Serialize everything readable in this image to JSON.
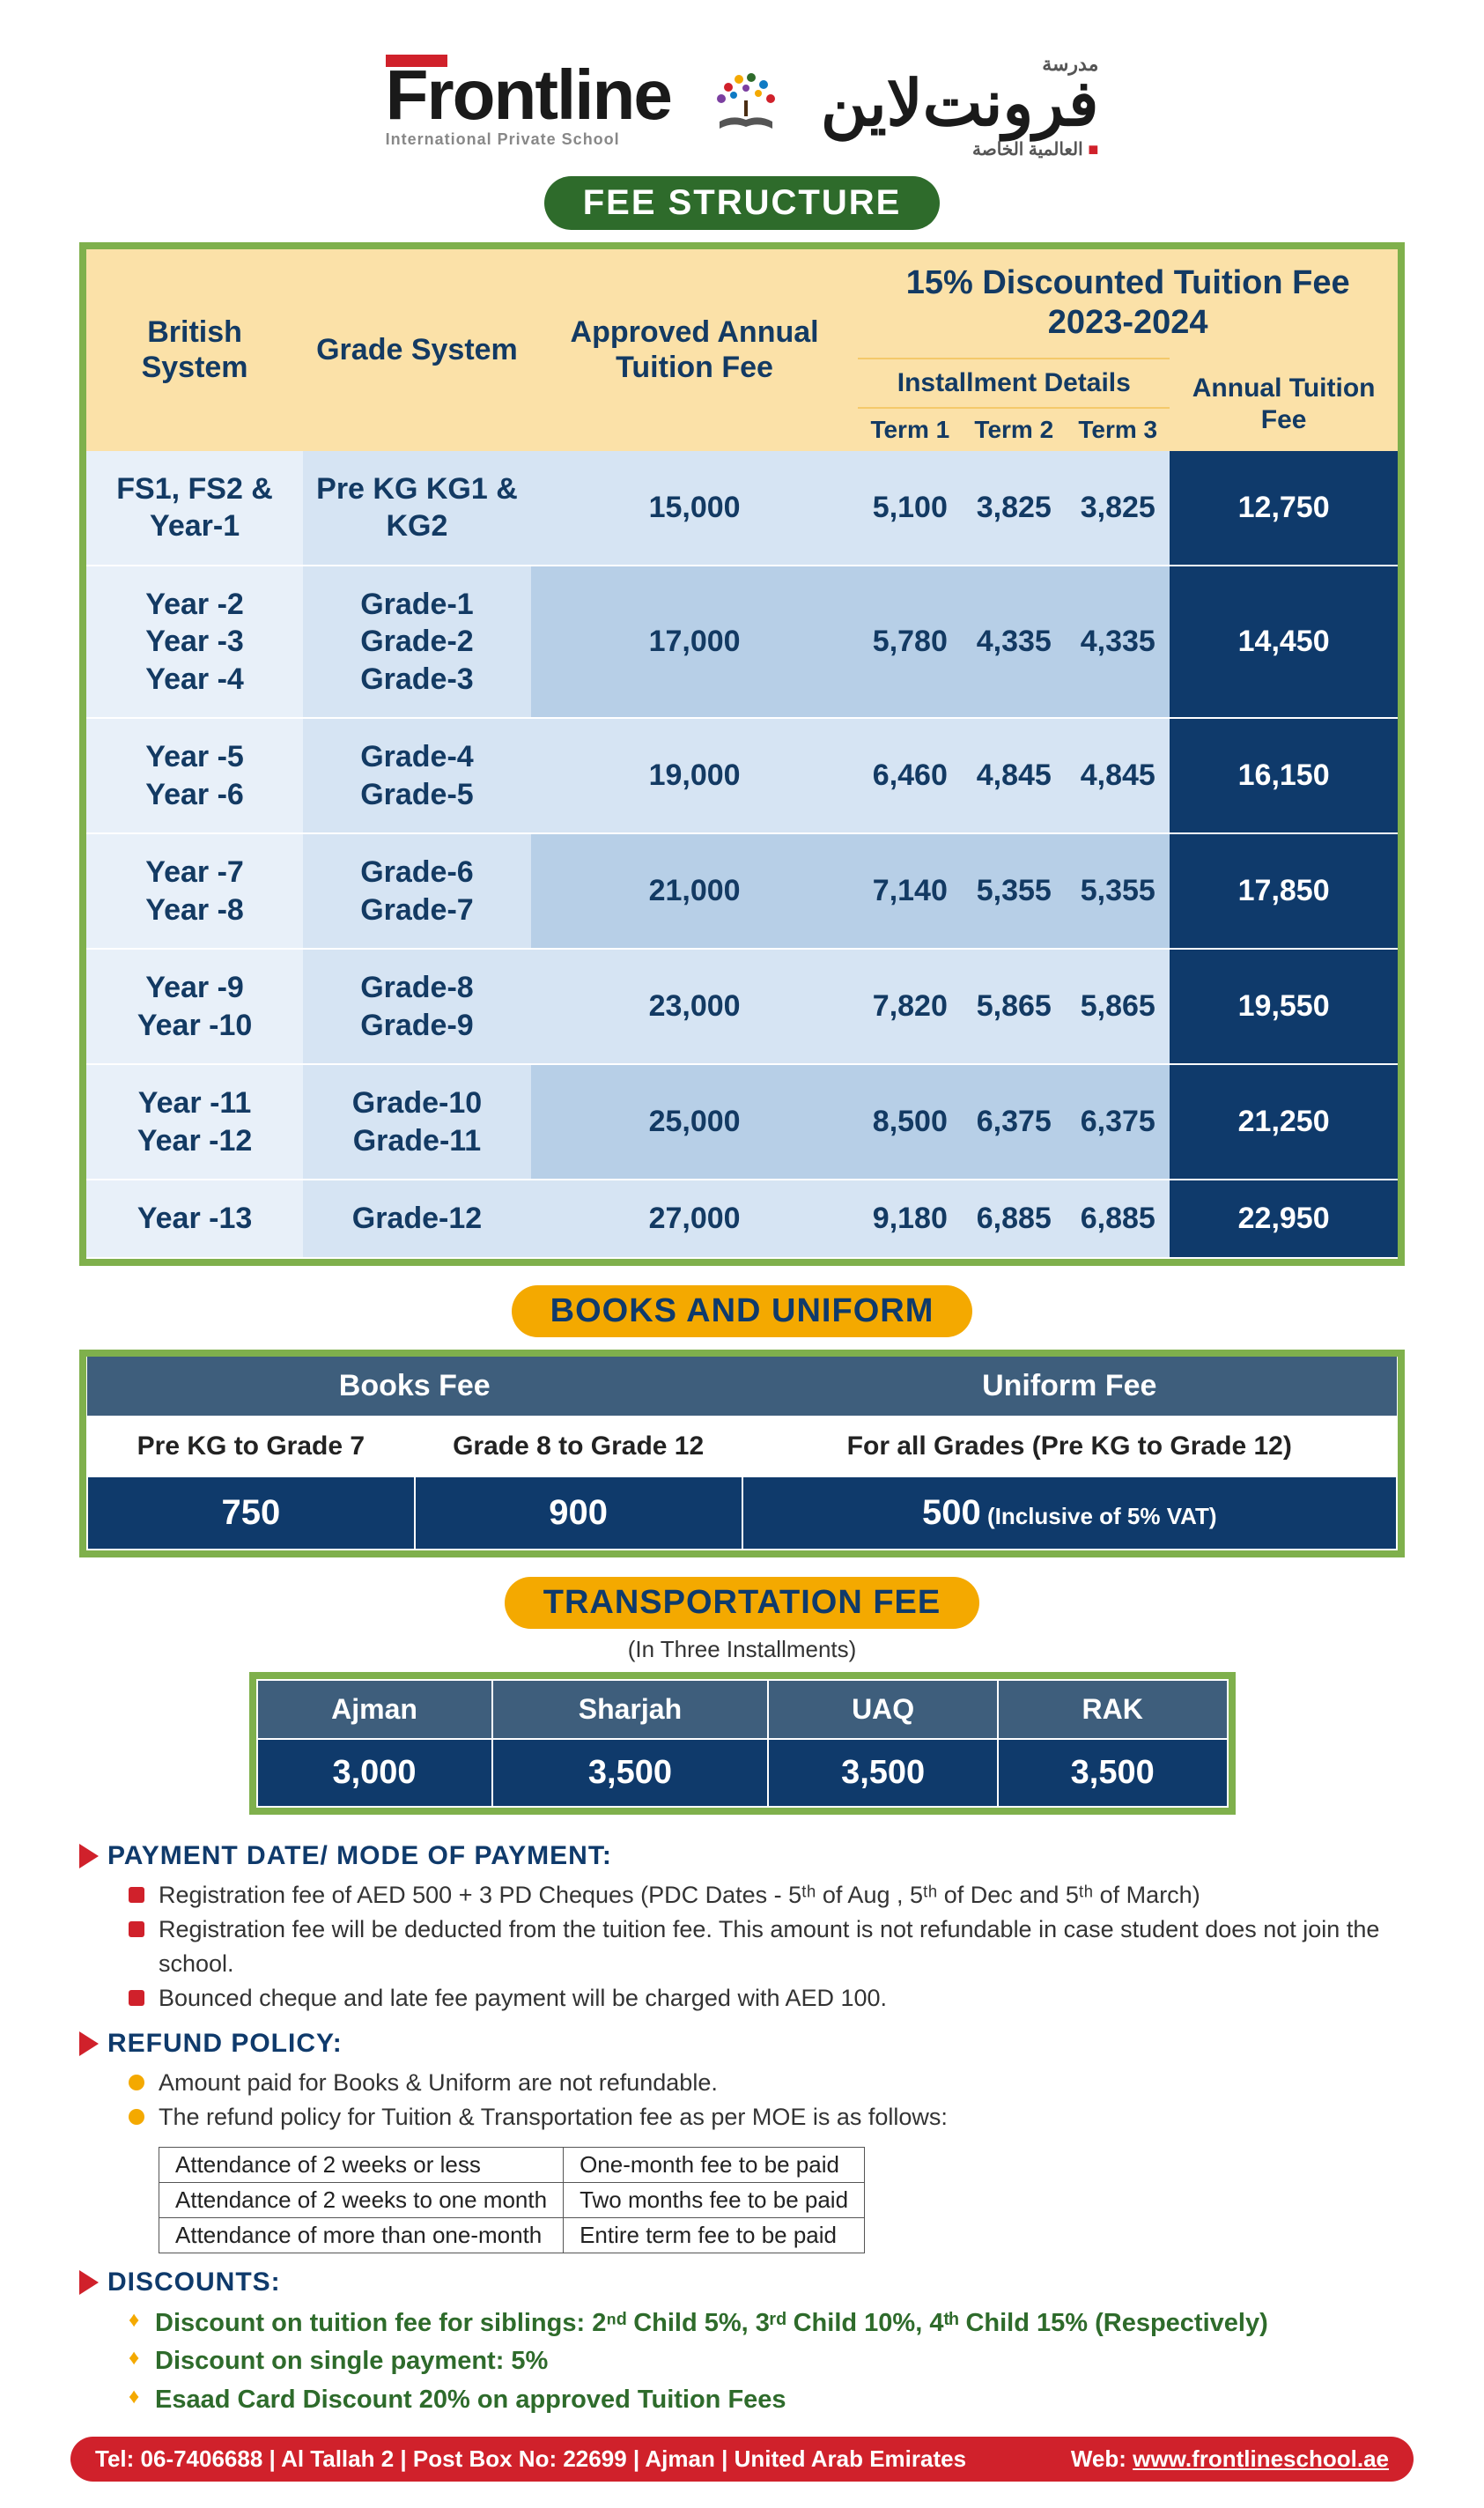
{
  "logo": {
    "en": "Frontline",
    "en_sub": "International Private School",
    "ar": "فرونت‌لاين",
    "ar_top": "مدرسة",
    "ar_sub": "العالمية الخاصة"
  },
  "colors": {
    "green": "#2e6b2b",
    "green_border": "#7fb04c",
    "yellow": "#f4a900",
    "peach": "#fbe1a8",
    "navy": "#0f3a6b",
    "slate": "#3e5e7c",
    "blue_lt": "#d6e4f3",
    "blue_md": "#b7cfe7",
    "red": "#d0212b"
  },
  "headings": {
    "fee": "FEE STRUCTURE",
    "books": "BOOKS AND UNIFORM",
    "transport": "TRANSPORTATION FEE",
    "transport_sub": "(In Three Installments)"
  },
  "fee_table": {
    "col_british": "British System",
    "col_grade": "Grade System",
    "col_approved": "Approved Annual Tuition Fee",
    "col_discount_title": "15% Discounted Tuition Fee 2023-2024",
    "col_install": "Installment Details",
    "col_t1": "Term 1",
    "col_t2": "Term 2",
    "col_t3": "Term 3",
    "col_annual": "Annual Tuition Fee",
    "rows": [
      {
        "british": "FS1, FS2 & Year-1",
        "grade": "Pre KG KG1 & KG2",
        "approved": "15,000",
        "t1": "5,100",
        "t2": "3,825",
        "t3": "3,825",
        "annual": "12,750"
      },
      {
        "british": "Year -2\nYear -3\nYear -4",
        "grade": "Grade-1\nGrade-2\nGrade-3",
        "approved": "17,000",
        "t1": "5,780",
        "t2": "4,335",
        "t3": "4,335",
        "annual": "14,450"
      },
      {
        "british": "Year -5\nYear -6",
        "grade": "Grade-4\nGrade-5",
        "approved": "19,000",
        "t1": "6,460",
        "t2": "4,845",
        "t3": "4,845",
        "annual": "16,150"
      },
      {
        "british": "Year -7\nYear -8",
        "grade": "Grade-6\nGrade-7",
        "approved": "21,000",
        "t1": "7,140",
        "t2": "5,355",
        "t3": "5,355",
        "annual": "17,850"
      },
      {
        "british": "Year -9\nYear -10",
        "grade": "Grade-8\nGrade-9",
        "approved": "23,000",
        "t1": "7,820",
        "t2": "5,865",
        "t3": "5,865",
        "annual": "19,550"
      },
      {
        "british": "Year -11\nYear -12",
        "grade": "Grade-10\nGrade-11",
        "approved": "25,000",
        "t1": "8,500",
        "t2": "6,375",
        "t3": "6,375",
        "annual": "21,250"
      },
      {
        "british": "Year -13",
        "grade": "Grade-12",
        "approved": "27,000",
        "t1": "9,180",
        "t2": "6,885",
        "t3": "6,885",
        "annual": "22,950"
      }
    ]
  },
  "books": {
    "h_books": "Books Fee",
    "h_uniform": "Uniform Fee",
    "sub_a": "Pre KG to Grade 7",
    "sub_b": "Grade 8 to Grade 12",
    "sub_c": "For all Grades (Pre KG to Grade 12)",
    "val_a": "750",
    "val_b": "900",
    "val_c": "500",
    "val_c_note": " (Inclusive of 5% VAT)"
  },
  "transport": {
    "cols": [
      "Ajman",
      "Sharjah",
      "UAQ",
      "RAK"
    ],
    "vals": [
      "3,000",
      "3,500",
      "3,500",
      "3,500"
    ]
  },
  "sections": {
    "payment": {
      "title": "PAYMENT DATE/ MODE OF PAYMENT:",
      "items": [
        "Registration fee of AED 500 + 3 PD Cheques (PDC Dates - 5ᵗʰ of Aug , 5ᵗʰ of Dec and 5ᵗʰ of March)",
        "Registration fee will be deducted from the tuition fee. This amount is not refundable in case student does not join the school.",
        "Bounced cheque and late fee payment will be charged with AED 100."
      ]
    },
    "refund": {
      "title": "REFUND POLICY:",
      "items": [
        "Amount paid for Books & Uniform are not refundable.",
        "The refund policy for Tuition & Transportation fee as per MOE is as follows:"
      ],
      "table": [
        [
          "Attendance of 2 weeks or less",
          "One-month fee to be paid"
        ],
        [
          "Attendance of 2 weeks to one month",
          "Two months fee to be paid"
        ],
        [
          "Attendance of more than one-month",
          "Entire term fee to be paid"
        ]
      ]
    },
    "discounts": {
      "title": "DISCOUNTS:",
      "items": [
        "Discount on tuition fee for siblings: 2ⁿᵈ Child 5%, 3ʳᵈ Child 10%, 4ᵗʰ Child 15% (Respectively)",
        "Discount on single payment: 5%",
        "Esaad Card Discount 20% on approved Tuition Fees"
      ]
    }
  },
  "footer": {
    "left": "Tel: 06-7406688 | Al Tallah 2 | Post Box No: 22699 | Ajman | United Arab Emirates",
    "right_label": "Web: ",
    "right_link": "www.frontlineschool.ae"
  }
}
